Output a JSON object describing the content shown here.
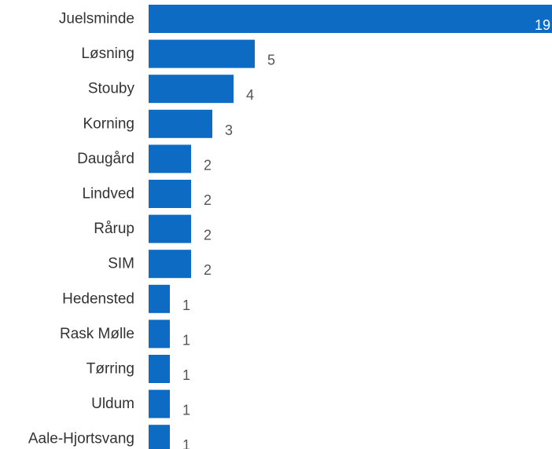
{
  "chart_data": {
    "type": "bar",
    "orientation": "horizontal",
    "title": "",
    "xlabel": "",
    "ylabel": "",
    "categories": [
      "Juelsminde",
      "Løsning",
      "Stouby",
      "Korning",
      "Daugård",
      "Lindved",
      "Rårup",
      "SIM",
      "Hedensted",
      "Rask Mølle",
      "Tørring",
      "Uldum",
      "Aale-Hjortsvang"
    ],
    "values": [
      19,
      5,
      4,
      3,
      2,
      2,
      2,
      2,
      1,
      1,
      1,
      1,
      1
    ],
    "xlim": [
      0,
      19
    ],
    "grid": false,
    "legend": "none",
    "bar_color": "#0e6bc4"
  }
}
